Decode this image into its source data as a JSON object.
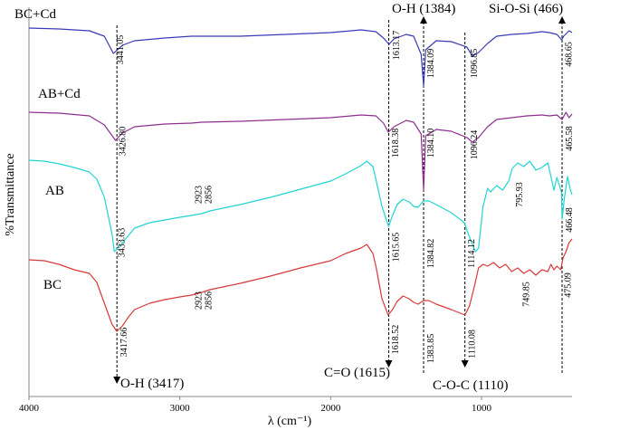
{
  "chart_data": {
    "type": "line",
    "title": "",
    "xlabel": "λ (cm⁻¹)",
    "ylabel": "%Transmittance",
    "xlim": [
      4000,
      400
    ],
    "xticks": [
      4000,
      3000,
      2000,
      1000
    ],
    "xtick_labels": [
      "4000",
      "3000",
      "2000",
      "1000"
    ],
    "series": [
      {
        "name": "BC+Cd",
        "color": "#3a3ab8",
        "x": [
          4000,
          3800,
          3600,
          3500,
          3441,
          3380,
          3300,
          3100,
          2923,
          2856,
          2600,
          2300,
          2000,
          1800,
          1700,
          1650,
          1613,
          1580,
          1500,
          1450,
          1400,
          1384,
          1370,
          1300,
          1200,
          1097,
          1060,
          1020,
          960,
          900,
          800,
          700,
          600,
          550,
          500,
          469,
          455,
          420,
          400
        ],
        "y": [
          31,
          32,
          34,
          40,
          59,
          50,
          45,
          42,
          40,
          40,
          40,
          38,
          36,
          33,
          35,
          42,
          49,
          43,
          38,
          40,
          60,
          95,
          55,
          45,
          46,
          52,
          62,
          58,
          48,
          40,
          38,
          37,
          35,
          36,
          38,
          44,
          40,
          34,
          36
        ]
      },
      {
        "name": "AB+Cd",
        "color": "#8e2f8e",
        "x": [
          4000,
          3800,
          3600,
          3500,
          3427,
          3380,
          3300,
          3100,
          2923,
          2856,
          2600,
          2300,
          2000,
          1800,
          1700,
          1650,
          1618,
          1580,
          1500,
          1450,
          1400,
          1384,
          1370,
          1300,
          1200,
          1096,
          1060,
          1020,
          960,
          900,
          800,
          700,
          600,
          550,
          500,
          466,
          440,
          420,
          400
        ],
        "y": [
          124,
          125,
          128,
          138,
          155,
          147,
          140,
          137,
          136,
          135,
          134,
          132,
          130,
          127,
          128,
          136,
          146,
          140,
          133,
          135,
          148,
          210,
          150,
          143,
          145,
          152,
          157,
          152,
          140,
          132,
          130,
          128,
          127,
          128,
          127,
          132,
          124,
          130,
          126
        ]
      },
      {
        "name": "AB",
        "color": "#22d3d3",
        "x": [
          4000,
          3900,
          3800,
          3700,
          3600,
          3550,
          3500,
          3450,
          3434,
          3400,
          3350,
          3300,
          3200,
          3100,
          3000,
          2923,
          2856,
          2800,
          2600,
          2400,
          2200,
          2000,
          1900,
          1800,
          1760,
          1720,
          1700,
          1660,
          1616,
          1590,
          1560,
          1520,
          1480,
          1450,
          1420,
          1385,
          1350,
          1300,
          1200,
          1114,
          1080,
          1040,
          1020,
          990,
          960,
          940,
          900,
          860,
          820,
          796,
          760,
          720,
          680,
          640,
          600,
          560,
          540,
          520,
          500,
          470,
          466,
          450,
          430,
          410,
          400
        ],
        "y": [
          177,
          178,
          181,
          185,
          190,
          198,
          218,
          258,
          278,
          272,
          262,
          252,
          246,
          243,
          240,
          238,
          236,
          233,
          226,
          218,
          209,
          200,
          192,
          183,
          178,
          184,
          198,
          228,
          250,
          238,
          226,
          220,
          223,
          228,
          229,
          222,
          222,
          226,
          235,
          246,
          262,
          278,
          274,
          228,
          208,
          212,
          205,
          210,
          200,
          186,
          180,
          184,
          178,
          188,
          185,
          180,
          195,
          210,
          196,
          212,
          242,
          218,
          195,
          210,
          215
        ]
      },
      {
        "name": "BC",
        "color": "#d63a3a",
        "x": [
          4000,
          3900,
          3800,
          3700,
          3600,
          3550,
          3500,
          3450,
          3418,
          3380,
          3340,
          3300,
          3200,
          3100,
          3000,
          2923,
          2856,
          2800,
          2600,
          2400,
          2200,
          2000,
          1900,
          1800,
          1760,
          1720,
          1700,
          1660,
          1619,
          1590,
          1560,
          1520,
          1480,
          1450,
          1420,
          1384,
          1350,
          1300,
          1200,
          1140,
          1110,
          1080,
          1050,
          1020,
          990,
          960,
          920,
          880,
          840,
          800,
          760,
          720,
          680,
          640,
          600,
          560,
          540,
          520,
          500,
          475,
          460,
          440,
          420,
          400
        ],
        "y": [
          287,
          288,
          292,
          298,
          302,
          312,
          335,
          358,
          366,
          360,
          350,
          342,
          335,
          331,
          328,
          326,
          323,
          320,
          313,
          305,
          296,
          288,
          280,
          274,
          270,
          280,
          294,
          330,
          348,
          342,
          333,
          327,
          330,
          334,
          336,
          332,
          332,
          336,
          342,
          346,
          348,
          338,
          318,
          296,
          292,
          294,
          290,
          296,
          292,
          300,
          296,
          302,
          298,
          304,
          298,
          300,
          292,
          298,
          294,
          298,
          285,
          278,
          268,
          264
        ]
      }
    ],
    "series_labels": [
      {
        "text": "BC+Cd"
      },
      {
        "text": "AB+Cd"
      },
      {
        "text": "AB"
      },
      {
        "text": "BC"
      }
    ],
    "peak_labels": [
      {
        "text": "3441.05",
        "x": 3441
      },
      {
        "text": "1613.17",
        "x": 1613
      },
      {
        "text": "1384.09",
        "x": 1384
      },
      {
        "text": "1096.85",
        "x": 1097
      },
      {
        "text": "468.65",
        "x": 469
      },
      {
        "text": "3426.80",
        "x": 3427
      },
      {
        "text": "1618.38",
        "x": 1618
      },
      {
        "text": "1384.10",
        "x": 1384
      },
      {
        "text": "1096.24",
        "x": 1096
      },
      {
        "text": "465.58",
        "x": 466
      },
      {
        "text": "2923",
        "x": 2923
      },
      {
        "text": "2856",
        "x": 2856
      },
      {
        "text": "795.93",
        "x": 796
      },
      {
        "text": "466.48",
        "x": 466
      },
      {
        "text": "3433.63",
        "x": 3434
      },
      {
        "text": "1615.65",
        "x": 1616
      },
      {
        "text": "1384.82",
        "x": 1385
      },
      {
        "text": "1114.12",
        "x": 1114
      },
      {
        "text": "2923",
        "x": 2923
      },
      {
        "text": "2856",
        "x": 2856
      },
      {
        "text": "749.85",
        "x": 750
      },
      {
        "text": "475.09",
        "x": 475
      },
      {
        "text": "3417.66",
        "x": 3418
      },
      {
        "text": "1618.52",
        "x": 1619
      },
      {
        "text": "1383.85",
        "x": 1384
      },
      {
        "text": "1110.08",
        "x": 1110
      }
    ],
    "annotations": [
      {
        "text": "O-H (3417)",
        "x": 3417,
        "arrow": "down"
      },
      {
        "text": "C=O (1615)",
        "x": 1615,
        "arrow": "down"
      },
      {
        "text": "O-H (1384)",
        "x": 1384,
        "arrow": "up"
      },
      {
        "text": "C-O-C (1110)",
        "x": 1110,
        "arrow": "down"
      },
      {
        "text": "Si-O-Si (466)",
        "x": 466,
        "arrow": "up"
      }
    ]
  }
}
